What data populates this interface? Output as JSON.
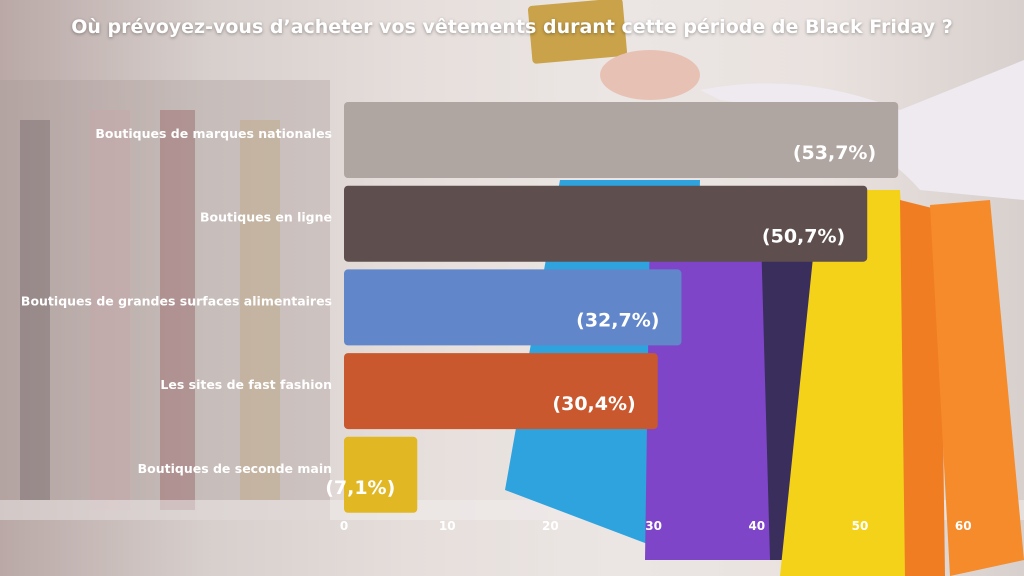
{
  "chart_data": {
    "type": "bar",
    "orientation": "horizontal",
    "title": "Où prévoyez-vous d’acheter vos vêtements durant cette période de Black Friday ?",
    "categories": [
      "Boutiques de marques nationales",
      "Boutiques en ligne",
      "Boutiques de grandes surfaces alimentaires",
      "Les sites de fast fashion",
      "Boutiques de seconde main"
    ],
    "values": [
      53.7,
      50.7,
      32.7,
      30.4,
      7.1
    ],
    "data_labels": [
      "(53,7%)",
      "(50,7%)",
      "(32,7%)",
      "(30,4%)",
      "(7,1%)"
    ],
    "colors": [
      "#b0a6a1",
      "#5e4e4d",
      "#6186c9",
      "#c9582f",
      "#e1b824"
    ],
    "xlim": [
      0,
      64
    ],
    "xticks": [
      0,
      10,
      20,
      30,
      40,
      50,
      60
    ],
    "grid": false,
    "legend": "none"
  }
}
